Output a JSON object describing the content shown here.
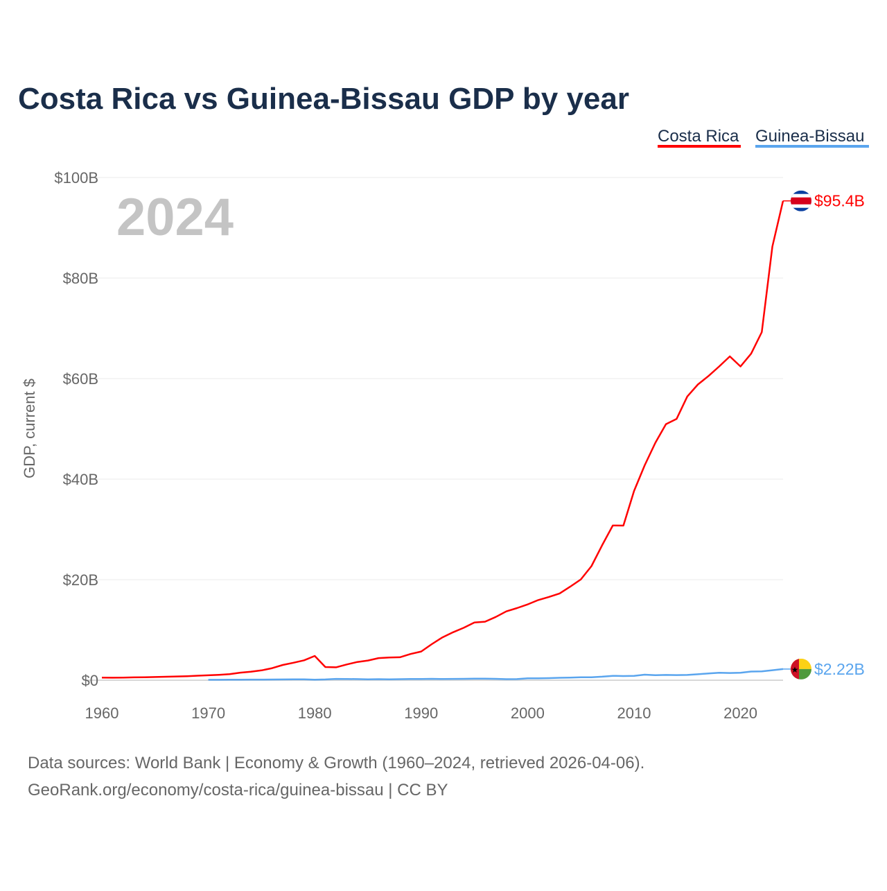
{
  "chart_data": {
    "type": "line",
    "title": "Costa Rica vs Guinea-Bissau GDP by year",
    "ylabel": "GDP, current $",
    "xlabel": "",
    "year_label": "2024",
    "xlim": [
      1960,
      2024
    ],
    "ylim": [
      0,
      100
    ],
    "x_ticks": [
      1960,
      1970,
      1980,
      1990,
      2000,
      2010,
      2020
    ],
    "y_ticks": [
      0,
      20,
      40,
      60,
      80,
      100
    ],
    "y_tick_labels": [
      "$0",
      "$20B",
      "$40B",
      "$60B",
      "$80B",
      "$100B"
    ],
    "grid": true,
    "legend_position": "top-right",
    "series": [
      {
        "name": "Costa Rica",
        "color": "#ff0000",
        "end_label": "$95.4B",
        "start_year": 1960,
        "values": [
          0.51,
          0.49,
          0.53,
          0.56,
          0.59,
          0.64,
          0.69,
          0.74,
          0.8,
          0.89,
          0.98,
          1.07,
          1.22,
          1.51,
          1.68,
          1.96,
          2.4,
          3.04,
          3.48,
          3.96,
          4.83,
          2.62,
          2.57,
          3.13,
          3.63,
          3.92,
          4.4,
          4.53,
          4.56,
          5.22,
          5.71,
          7.17,
          8.52,
          9.55,
          10.43,
          11.49,
          11.64,
          12.58,
          13.69,
          14.34,
          15.07,
          15.95,
          16.57,
          17.25,
          18.61,
          20.05,
          22.69,
          26.84,
          30.77,
          30.76,
          37.66,
          42.74,
          47.23,
          50.94,
          51.98,
          56.44,
          58.83,
          60.52,
          62.41,
          64.42,
          62.41,
          64.95,
          69.24,
          86.27,
          95.35
        ]
      },
      {
        "name": "Guinea-Bissau",
        "color": "#5aa5ee",
        "end_label": "$2.22B",
        "start_year": 1970,
        "values": [
          0.08,
          0.08,
          0.09,
          0.1,
          0.12,
          0.13,
          0.14,
          0.15,
          0.17,
          0.17,
          0.11,
          0.15,
          0.26,
          0.25,
          0.22,
          0.16,
          0.21,
          0.17,
          0.2,
          0.23,
          0.24,
          0.27,
          0.23,
          0.26,
          0.28,
          0.31,
          0.31,
          0.27,
          0.21,
          0.22,
          0.37,
          0.39,
          0.42,
          0.48,
          0.53,
          0.59,
          0.59,
          0.7,
          0.87,
          0.83,
          0.85,
          1.1,
          0.99,
          1.05,
          1.02,
          1.05,
          1.18,
          1.35,
          1.47,
          1.44,
          1.48,
          1.73,
          1.75,
          1.99,
          2.22
        ]
      }
    ]
  },
  "footer": {
    "line1": "Data sources: World Bank | Economy & Growth (1960–2024, retrieved 2026-04-06).",
    "line2": "GeoRank.org/economy/costa-rica/guinea-bissau | CC BY"
  }
}
